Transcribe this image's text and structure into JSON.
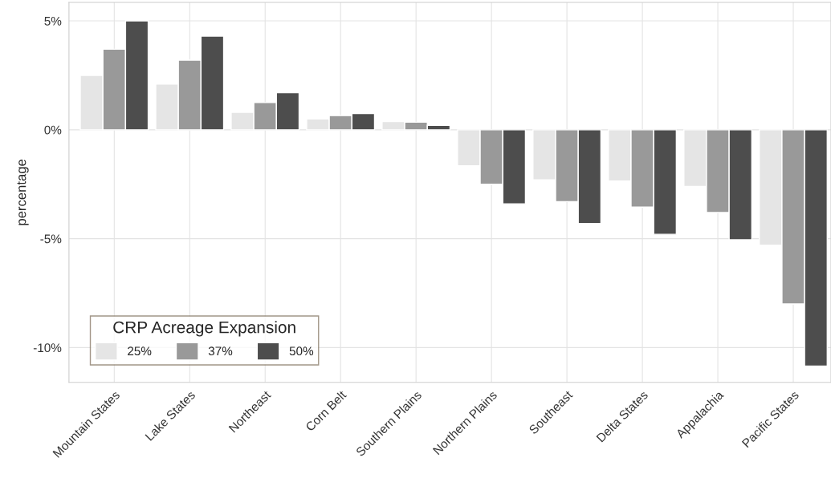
{
  "chart_data": {
    "type": "bar",
    "ylabel": "percentage",
    "legend_title": "CRP Acreage Expansion",
    "legend": "bottom left",
    "grid": true,
    "categories": [
      "Mountain States",
      "Lake States",
      "Northeast",
      "Corn Belt",
      "Southern Plains",
      "Northern Plains",
      "Southeast",
      "Delta States",
      "Appalachia",
      "Pacific States"
    ],
    "series": [
      {
        "name": "25%",
        "color": "#e5e5e5",
        "values": [
          2.5,
          2.1,
          0.8,
          0.5,
          0.38,
          -1.65,
          -2.3,
          -2.35,
          -2.6,
          -5.3
        ]
      },
      {
        "name": "37%",
        "color": "#999999",
        "values": [
          3.7,
          3.2,
          1.25,
          0.65,
          0.35,
          -2.5,
          -3.3,
          -3.55,
          -3.8,
          -8.0
        ]
      },
      {
        "name": "50%",
        "color": "#4d4d4d",
        "values": [
          5.0,
          4.3,
          1.7,
          0.75,
          0.2,
          -3.4,
          -4.3,
          -4.8,
          -5.05,
          -10.85
        ]
      }
    ],
    "ylim": [
      -11.6,
      5.85
    ],
    "yticks": [
      {
        "value": 5,
        "label": "5%"
      },
      {
        "value": 0,
        "label": "0%"
      },
      {
        "value": -5,
        "label": "-5%"
      },
      {
        "value": -10,
        "label": "-10%"
      }
    ]
  }
}
